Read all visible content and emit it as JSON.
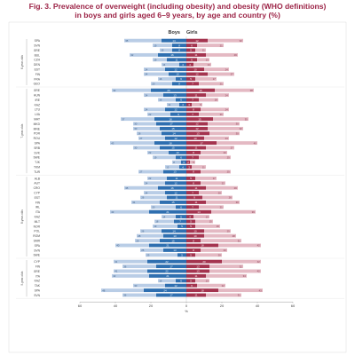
{
  "title_lines": [
    "Fig. 3. Prevalence of overweight (including obesity) and obesity (WHO definitions)",
    "in boys and girls aged 6–9 years, by age and country (%)"
  ],
  "chart_data": {
    "type": "bar",
    "orientation": "horizontal-diverging",
    "header_left": "Boys",
    "header_right": "Girls",
    "xlim": [
      -60,
      60
    ],
    "xticks": [
      -60,
      -40,
      -20,
      0,
      20,
      40,
      60
    ],
    "xtick_labels": [
      "60",
      "40",
      "20",
      "0",
      "20",
      "40",
      "60"
    ],
    "xlabel": "%",
    "colors": {
      "boys_overweight": "#b9cde6",
      "boys_obesity": "#2f6fb0",
      "girls_overweight": "#e4b9c3",
      "girls_obesity": "#a4344f"
    },
    "groups": [
      {
        "label": "6-year-olds",
        "rows": [
          {
            "country": "SPA",
            "boys_ow": 35,
            "boys_ob": 14,
            "girls_ow": 32,
            "girls_ob": 12
          },
          {
            "country": "SVN",
            "boys_ow": 19,
            "boys_ob": 8,
            "girls_ow": 21,
            "girls_ob": 6
          },
          {
            "country": "GRE",
            "boys_ow": 15,
            "boys_ob": 8,
            "girls_ow": 11,
            "girls_ob": 5
          },
          {
            "country": "BUL",
            "boys_ow": 32,
            "boys_ob": 16,
            "girls_ow": 29,
            "girls_ob": 11
          },
          {
            "country": "CZH",
            "boys_ow": 19,
            "boys_ob": 11,
            "girls_ow": 13,
            "girls_ob": 6
          },
          {
            "country": "DEN",
            "boys_ow": 14,
            "boys_ob": 4,
            "girls_ow": 14,
            "girls_ob": 4
          },
          {
            "country": "EST",
            "boys_ow": 24,
            "boys_ob": 12,
            "girls_ow": 24,
            "girls_ob": 10
          },
          {
            "country": "FIN",
            "boys_ow": 24,
            "boys_ob": 10,
            "girls_ow": 27,
            "girls_ob": 12
          },
          {
            "country": "FRA",
            "boys_ow": 16,
            "boys_ob": 6,
            "girls_ow": 17,
            "girls_ob": 5
          },
          {
            "country": "GEO",
            "boys_ow": 20,
            "boys_ob": 8,
            "girls_ow": 21,
            "girls_ob": 7
          }
        ]
      },
      {
        "label": "7-year-olds",
        "rows": [
          {
            "country": "GRE",
            "boys_ow": 42,
            "boys_ob": 20,
            "girls_ow": 38,
            "girls_ob": 16
          },
          {
            "country": "HUN",
            "boys_ow": 24,
            "boys_ob": 13,
            "girls_ow": 24,
            "girls_ob": 11
          },
          {
            "country": "IRE",
            "boys_ow": 16,
            "boys_ob": 6,
            "girls_ow": 18,
            "girls_ob": 7
          },
          {
            "country": "KAZ",
            "boys_ow": 11,
            "boys_ob": 4,
            "girls_ow": 9,
            "girls_ob": 3
          },
          {
            "country": "LTU",
            "boys_ow": 24,
            "boys_ob": 12,
            "girls_ow": 24,
            "girls_ob": 8
          },
          {
            "country": "LVA",
            "boys_ow": 22,
            "boys_ob": 9,
            "girls_ow": 21,
            "girls_ob": 7
          },
          {
            "country": "MAT",
            "boys_ow": 37,
            "boys_ob": 18,
            "girls_ow": 35,
            "girls_ob": 15
          },
          {
            "country": "MKD",
            "boys_ow": 30,
            "boys_ob": 17,
            "girls_ow": 30,
            "girls_ob": 12
          },
          {
            "country": "MNE",
            "boys_ow": 30,
            "boys_ob": 15,
            "girls_ow": 32,
            "girls_ob": 12
          },
          {
            "country": "POR",
            "boys_ow": 28,
            "boys_ob": 14,
            "girls_ow": 30,
            "girls_ob": 13
          },
          {
            "country": "ROU",
            "boys_ow": 27,
            "boys_ob": 12,
            "girls_ow": 24,
            "girls_ob": 10
          },
          {
            "country": "SPA",
            "boys_ow": 43,
            "boys_ob": 18,
            "girls_ow": 40,
            "girls_ob": 17
          },
          {
            "country": "SRB",
            "boys_ow": 30,
            "boys_ob": 15,
            "girls_ow": 27,
            "girls_ob": 11
          },
          {
            "country": "SVK",
            "boys_ow": 22,
            "boys_ob": 10,
            "girls_ow": 23,
            "girls_ob": 8
          },
          {
            "country": "SWE",
            "boys_ow": 19,
            "boys_ob": 6,
            "girls_ow": 25,
            "girls_ob": 7
          },
          {
            "country": "TJK",
            "boys_ow": 8,
            "boys_ob": 3,
            "girls_ow": 5,
            "girls_ob": 2
          },
          {
            "country": "TKM",
            "boys_ow": 12,
            "boys_ob": 4,
            "girls_ow": 11,
            "girls_ob": 3
          },
          {
            "country": "TUR",
            "boys_ow": 27,
            "boys_ob": 13,
            "girls_ow": 25,
            "girls_ob": 8
          }
        ]
      },
      {
        "label": "8-year-olds",
        "rows": [
          {
            "country": "ALB",
            "boys_ow": 22,
            "boys_ob": 11,
            "girls_ow": 17,
            "girls_ob": 5
          },
          {
            "country": "AUT",
            "boys_ow": 24,
            "boys_ob": 12,
            "girls_ow": 22,
            "girls_ob": 8
          },
          {
            "country": "CRO",
            "boys_ow": 35,
            "boys_ob": 16,
            "girls_ow": 29,
            "girls_ob": 11
          },
          {
            "country": "CYP",
            "boys_ow": 24,
            "boys_ob": 12,
            "girls_ow": 20,
            "girls_ob": 7
          },
          {
            "country": "EST",
            "boys_ow": 26,
            "boys_ob": 11,
            "girls_ow": 26,
            "girls_ob": 9
          },
          {
            "country": "FIN",
            "boys_ow": 31,
            "boys_ob": 15,
            "girls_ow": 30,
            "girls_ob": 11
          },
          {
            "country": "IRL",
            "boys_ow": 20,
            "boys_ob": 6,
            "girls_ow": 21,
            "girls_ob": 7
          },
          {
            "country": "ITA",
            "boys_ow": 43,
            "boys_ob": 21,
            "girls_ow": 39,
            "girls_ob": 14
          },
          {
            "country": "KAZ",
            "boys_ow": 14,
            "boys_ob": 6,
            "girls_ow": 13,
            "girls_ob": 4
          },
          {
            "country": "MLT",
            "boys_ow": 18,
            "boys_ob": 7,
            "girls_ow": 15,
            "girls_ob": 5
          },
          {
            "country": "NOR",
            "boys_ow": 19,
            "boys_ob": 5,
            "girls_ow": 19,
            "girls_ob": 5
          },
          {
            "country": "POL",
            "boys_ow": 26,
            "boys_ob": 14,
            "girls_ow": 25,
            "girls_ob": 10
          },
          {
            "country": "ROM",
            "boys_ow": 28,
            "boys_ob": 13,
            "girls_ow": 28,
            "girls_ob": 10
          },
          {
            "country": "SMR",
            "boys_ow": 29,
            "boys_ob": 15,
            "girls_ow": 31,
            "girls_ob": 8
          },
          {
            "country": "SPA",
            "boys_ow": 40,
            "boys_ob": 21,
            "girls_ow": 42,
            "girls_ob": 18
          },
          {
            "country": "SVN",
            "boys_ow": 26,
            "boys_ob": 13,
            "girls_ow": 23,
            "girls_ob": 8
          },
          {
            "country": "SWE",
            "boys_ow": 23,
            "boys_ob": 5,
            "girls_ow": 20,
            "girls_ob": 5
          }
        ]
      },
      {
        "label": "9-year-olds",
        "rows": [
          {
            "country": "CYP",
            "boys_ow": 41,
            "boys_ob": 22,
            "girls_ow": 42,
            "girls_ob": 20
          },
          {
            "country": "FIN",
            "boys_ow": 36,
            "boys_ob": 17,
            "girls_ow": 32,
            "girls_ob": 13
          },
          {
            "country": "GRE",
            "boys_ow": 41,
            "boys_ob": 22,
            "girls_ow": 42,
            "girls_ob": 13
          },
          {
            "country": "ITA",
            "boys_ow": 42,
            "boys_ob": 21,
            "girls_ow": 34,
            "girls_ob": 11
          },
          {
            "country": "KAZ",
            "boys_ow": 16,
            "boys_ob": 6,
            "girls_ow": 13,
            "girls_ob": 5
          },
          {
            "country": "TAK",
            "boys_ow": 30,
            "boys_ob": 12,
            "girls_ow": 22,
            "girls_ob": 6
          },
          {
            "country": "SPA",
            "boys_ow": 48,
            "boys_ob": 24,
            "girls_ow": 43,
            "girls_ob": 18
          },
          {
            "country": "SVN",
            "boys_ow": 36,
            "boys_ob": 17,
            "girls_ow": 31,
            "girls_ob": 11
          }
        ]
      }
    ]
  }
}
